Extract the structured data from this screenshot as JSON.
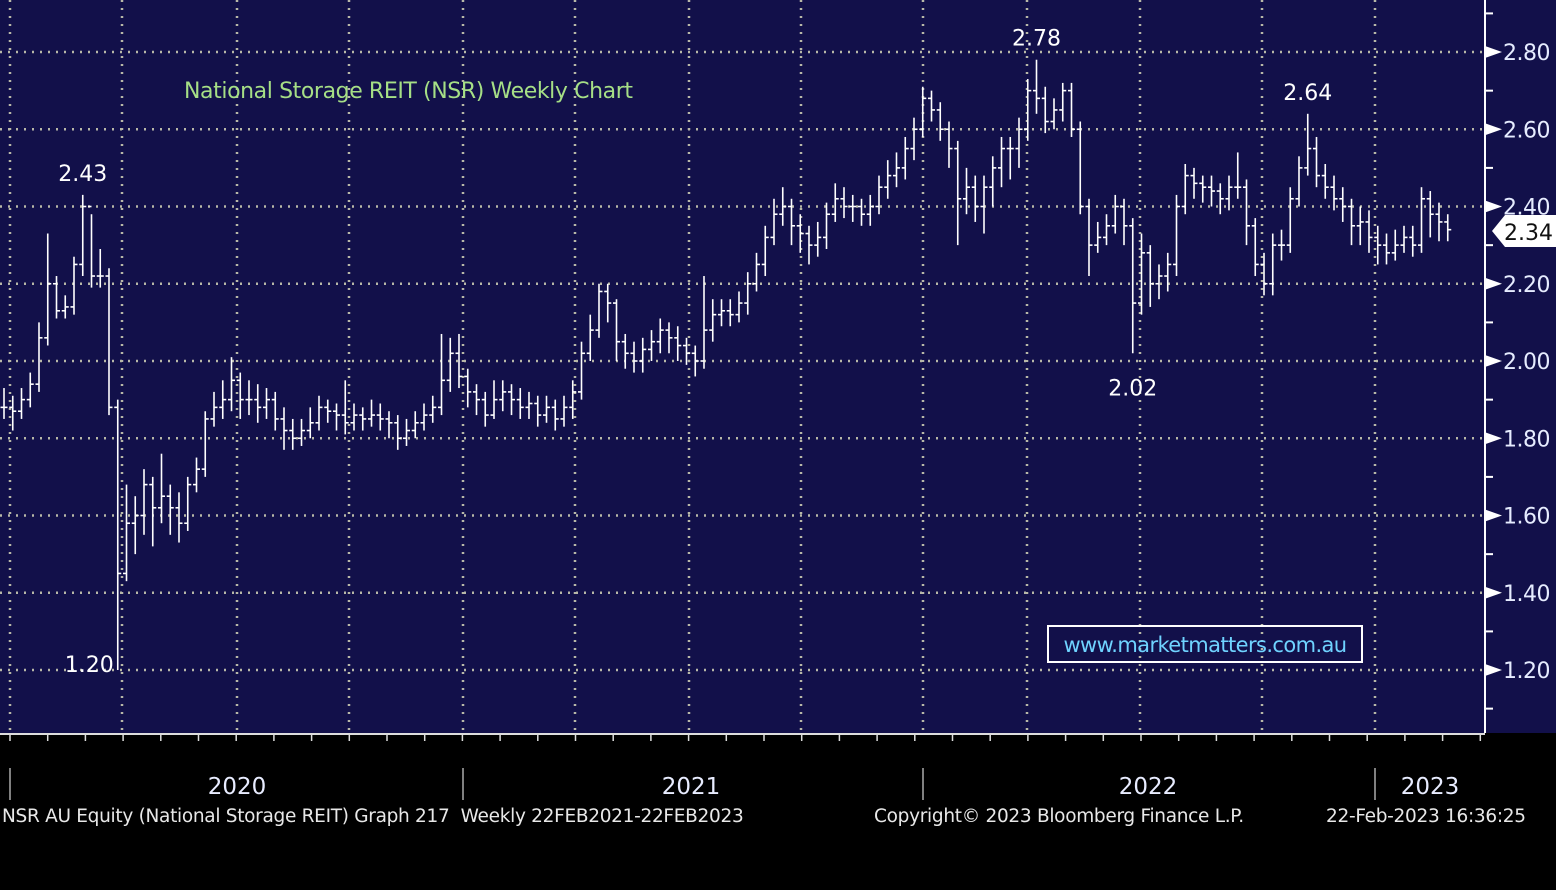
{
  "chart_data": {
    "type": "ohlc",
    "title": "National Storage REIT (NSR) Weekly Chart",
    "watermark": "www.marketmatters.com.au",
    "ylim": [
      1.04,
      2.92
    ],
    "yticks": [
      "1.20",
      "1.40",
      "1.60",
      "1.80",
      "2.00",
      "2.20",
      "2.40",
      "2.60",
      "2.80"
    ],
    "x_year_labels": [
      "2020",
      "2021",
      "2022",
      "2023"
    ],
    "grid": true,
    "last_price": "2.34",
    "annotations": [
      {
        "text": "2.43",
        "bar": 9,
        "pos": "above"
      },
      {
        "text": "1.20",
        "bar": 13,
        "pos": "below-left"
      },
      {
        "text": "2.78",
        "bar": 118,
        "pos": "above"
      },
      {
        "text": "2.02",
        "bar": 129,
        "pos": "below"
      },
      {
        "text": "2.64",
        "bar": 149,
        "pos": "above"
      }
    ],
    "close": [
      1.88,
      1.87,
      1.9,
      1.94,
      2.06,
      2.2,
      2.13,
      2.14,
      2.25,
      2.4,
      2.22,
      2.22,
      1.88,
      1.45,
      1.58,
      1.6,
      1.68,
      1.62,
      1.65,
      1.62,
      1.58,
      1.68,
      1.72,
      1.85,
      1.88,
      1.9,
      1.95,
      1.9,
      1.9,
      1.88,
      1.9,
      1.85,
      1.82,
      1.8,
      1.82,
      1.84,
      1.88,
      1.87,
      1.86,
      1.84,
      1.86,
      1.85,
      1.86,
      1.85,
      1.84,
      1.8,
      1.82,
      1.84,
      1.86,
      1.88,
      1.95,
      2.02,
      1.96,
      1.92,
      1.9,
      1.86,
      1.9,
      1.92,
      1.9,
      1.88,
      1.89,
      1.86,
      1.88,
      1.85,
      1.88,
      1.92,
      2.02,
      2.08,
      2.18,
      2.15,
      2.05,
      2.02,
      2.0,
      2.03,
      2.05,
      2.08,
      2.06,
      2.04,
      2.02,
      2.0,
      2.08,
      2.12,
      2.13,
      2.12,
      2.15,
      2.2,
      2.25,
      2.32,
      2.38,
      2.4,
      2.35,
      2.33,
      2.3,
      2.32,
      2.38,
      2.42,
      2.4,
      2.4,
      2.38,
      2.4,
      2.45,
      2.48,
      2.5,
      2.55,
      2.6,
      2.68,
      2.65,
      2.6,
      2.55,
      2.42,
      2.45,
      2.4,
      2.45,
      2.5,
      2.55,
      2.55,
      2.6,
      2.7,
      2.68,
      2.62,
      2.65,
      2.7,
      2.6,
      2.4,
      2.3,
      2.32,
      2.35,
      2.4,
      2.35,
      2.15,
      2.28,
      2.2,
      2.22,
      2.25,
      2.4,
      2.48,
      2.46,
      2.45,
      2.44,
      2.42,
      2.45,
      2.45,
      2.35,
      2.25,
      2.2,
      2.3,
      2.3,
      2.42,
      2.5,
      2.55,
      2.48,
      2.45,
      2.42,
      2.4,
      2.35,
      2.36,
      2.32,
      2.3,
      2.28,
      2.3,
      2.32,
      2.3,
      2.42,
      2.38,
      2.36,
      2.34
    ],
    "high": [
      1.93,
      1.91,
      1.93,
      1.97,
      2.1,
      2.33,
      2.22,
      2.17,
      2.27,
      2.43,
      2.38,
      2.29,
      2.24,
      1.9,
      1.68,
      1.65,
      1.72,
      1.7,
      1.76,
      1.68,
      1.66,
      1.7,
      1.75,
      1.87,
      1.92,
      1.95,
      2.01,
      1.97,
      1.95,
      1.94,
      1.93,
      1.92,
      1.88,
      1.85,
      1.85,
      1.88,
      1.91,
      1.9,
      1.89,
      1.95,
      1.89,
      1.88,
      1.9,
      1.89,
      1.87,
      1.86,
      1.85,
      1.87,
      1.89,
      1.91,
      2.07,
      2.06,
      2.07,
      1.98,
      1.94,
      1.92,
      1.95,
      1.95,
      1.94,
      1.93,
      1.92,
      1.91,
      1.91,
      1.9,
      1.91,
      1.95,
      2.05,
      2.12,
      2.2,
      2.2,
      2.16,
      2.07,
      2.05,
      2.06,
      2.08,
      2.11,
      2.1,
      2.09,
      2.06,
      2.04,
      2.22,
      2.16,
      2.16,
      2.16,
      2.18,
      2.23,
      2.28,
      2.35,
      2.42,
      2.45,
      2.42,
      2.38,
      2.35,
      2.36,
      2.41,
      2.46,
      2.45,
      2.43,
      2.42,
      2.43,
      2.48,
      2.52,
      2.54,
      2.58,
      2.63,
      2.71,
      2.7,
      2.67,
      2.62,
      2.57,
      2.5,
      2.48,
      2.48,
      2.53,
      2.58,
      2.58,
      2.63,
      2.73,
      2.78,
      2.71,
      2.68,
      2.72,
      2.72,
      2.62,
      2.42,
      2.36,
      2.38,
      2.43,
      2.42,
      2.37,
      2.33,
      2.3,
      2.25,
      2.28,
      2.43,
      2.51,
      2.5,
      2.48,
      2.48,
      2.46,
      2.48,
      2.54,
      2.47,
      2.37,
      2.28,
      2.33,
      2.34,
      2.45,
      2.53,
      2.64,
      2.58,
      2.51,
      2.48,
      2.45,
      2.42,
      2.4,
      2.39,
      2.35,
      2.33,
      2.34,
      2.35,
      2.35,
      2.45,
      2.44,
      2.41,
      2.38
    ],
    "low": [
      1.85,
      1.82,
      1.85,
      1.88,
      1.92,
      2.04,
      2.11,
      2.11,
      2.12,
      2.22,
      2.19,
      2.19,
      1.86,
      1.2,
      1.43,
      1.5,
      1.55,
      1.52,
      1.58,
      1.55,
      1.53,
      1.56,
      1.66,
      1.7,
      1.83,
      1.85,
      1.87,
      1.85,
      1.86,
      1.84,
      1.85,
      1.82,
      1.77,
      1.77,
      1.78,
      1.8,
      1.82,
      1.84,
      1.82,
      1.81,
      1.82,
      1.82,
      1.83,
      1.82,
      1.8,
      1.77,
      1.78,
      1.8,
      1.82,
      1.84,
      1.86,
      1.92,
      1.93,
      1.88,
      1.86,
      1.83,
      1.85,
      1.87,
      1.86,
      1.85,
      1.85,
      1.83,
      1.84,
      1.82,
      1.83,
      1.85,
      1.9,
      2.0,
      2.06,
      2.1,
      2.0,
      1.98,
      1.97,
      1.97,
      2.0,
      2.02,
      2.02,
      2.0,
      1.99,
      1.96,
      1.98,
      2.05,
      2.09,
      2.09,
      2.1,
      2.12,
      2.18,
      2.22,
      2.3,
      2.35,
      2.3,
      2.28,
      2.25,
      2.27,
      2.29,
      2.36,
      2.37,
      2.36,
      2.35,
      2.35,
      2.38,
      2.42,
      2.45,
      2.47,
      2.52,
      2.58,
      2.62,
      2.57,
      2.5,
      2.3,
      2.38,
      2.36,
      2.33,
      2.4,
      2.45,
      2.47,
      2.5,
      2.57,
      2.64,
      2.59,
      2.6,
      2.62,
      2.58,
      2.38,
      2.22,
      2.28,
      2.3,
      2.33,
      2.3,
      2.02,
      2.12,
      2.14,
      2.16,
      2.18,
      2.22,
      2.38,
      2.42,
      2.41,
      2.4,
      2.38,
      2.39,
      2.42,
      2.3,
      2.22,
      2.17,
      2.17,
      2.26,
      2.28,
      2.4,
      2.48,
      2.45,
      2.42,
      2.39,
      2.36,
      2.3,
      2.3,
      2.28,
      2.25,
      2.25,
      2.26,
      2.28,
      2.27,
      2.28,
      2.32,
      2.31,
      2.31
    ]
  },
  "footer": {
    "security": "NSR AU Equity (National Storage REIT) Graph 217  Weekly 22FEB2021-22FEB2023",
    "copyright": "Copyright© 2023 Bloomberg Finance L.P.",
    "timestamp": "22-Feb-2023 16:36:25"
  },
  "colors": {
    "background": "#12104a",
    "bars": "#ffffff",
    "title": "#a6df86",
    "watermark": "#6fd3ff",
    "grid": "#b8b8a8"
  }
}
